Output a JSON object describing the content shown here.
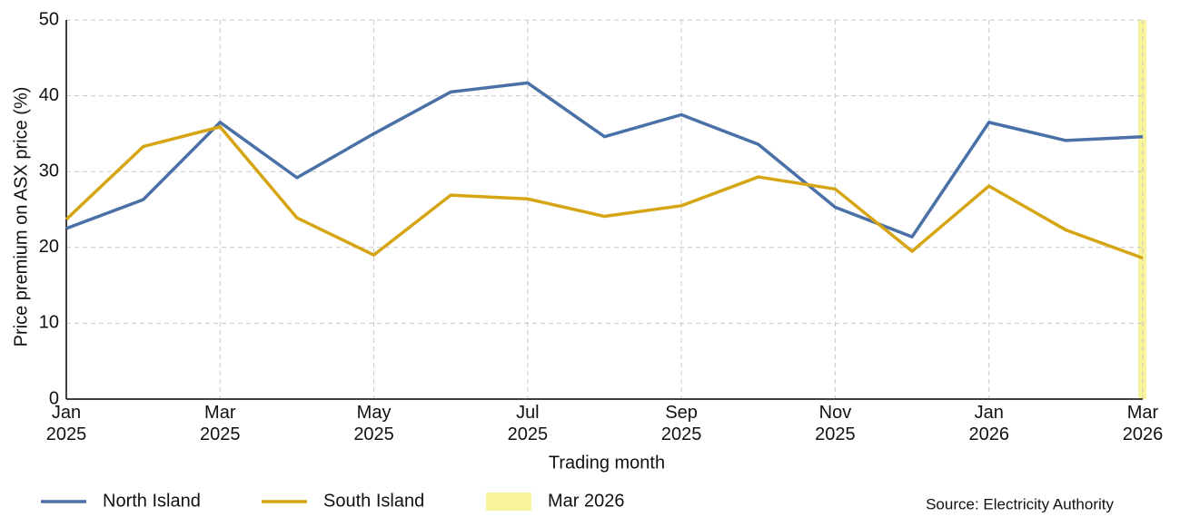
{
  "chart_data": {
    "type": "line",
    "x_label": "Trading month",
    "y_label": "Price premium on ASX price (%)",
    "categories": [
      "Jan 2025",
      null,
      "Mar 2025",
      null,
      "May 2025",
      null,
      "Jul 2025",
      null,
      "Sep 2025",
      null,
      "Nov 2025",
      null,
      "Jan 2026",
      null,
      "Mar 2026"
    ],
    "series": [
      {
        "name": "North Island",
        "color": "#4a70a8",
        "values": [
          22.5,
          26.3,
          36.5,
          29.2,
          35.0,
          40.5,
          41.7,
          34.6,
          37.5,
          33.6,
          25.3,
          21.4,
          36.5,
          34.1,
          34.6
        ]
      },
      {
        "name": "South Island",
        "color": "#d6a514",
        "values": [
          23.7,
          33.3,
          35.9,
          23.9,
          19.0,
          26.9,
          26.4,
          24.1,
          25.5,
          29.3,
          27.7,
          19.5,
          28.1,
          22.3,
          18.6
        ]
      }
    ],
    "highlight": {
      "name": "Mar 2026",
      "color": "#f8f49c"
    },
    "ylim": [
      0,
      50
    ],
    "yticks": [
      0,
      10,
      20,
      30,
      40,
      50
    ],
    "grid": true,
    "source": "Source: Electricity Authority"
  }
}
